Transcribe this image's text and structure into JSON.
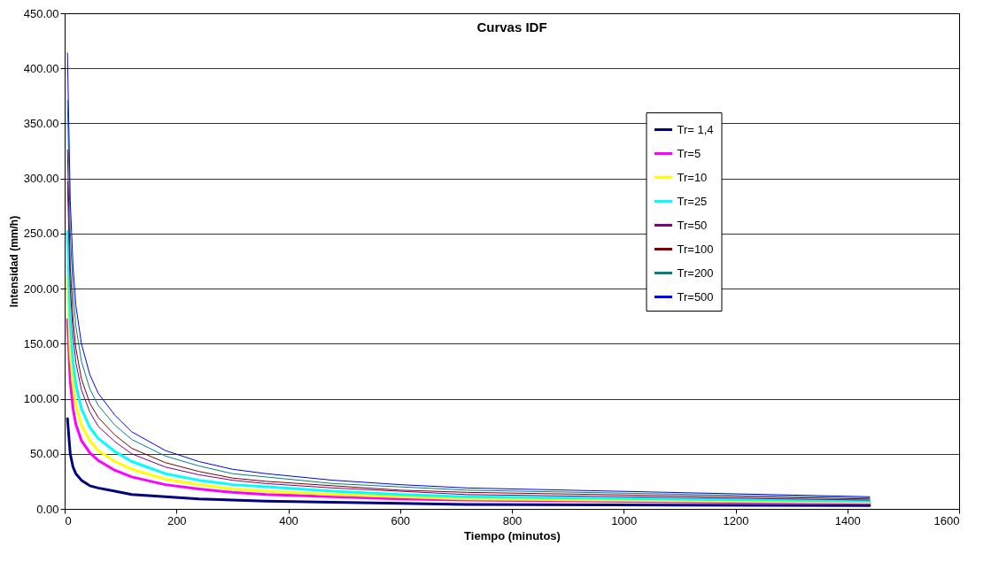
{
  "chart_data": {
    "type": "line",
    "title": "Curvas IDF",
    "xlabel": "Tiempo (minutos)",
    "ylabel": "Intensidad (mm/h)",
    "x": [
      5,
      10,
      15,
      20,
      30,
      45,
      60,
      90,
      120,
      180,
      240,
      300,
      360,
      480,
      600,
      720,
      1440
    ],
    "series": [
      {
        "name": "Tr= 1,4",
        "color": "#000080",
        "values": [
          82,
          50,
          38,
          32,
          26,
          21,
          19,
          16,
          13,
          11,
          9,
          8,
          7,
          6,
          5,
          4,
          3
        ]
      },
      {
        "name": "Tr=5",
        "color": "#ff00ff",
        "values": [
          172,
          116,
          91,
          77,
          62,
          51,
          44,
          35,
          29,
          22,
          18,
          15,
          13,
          11,
          9,
          8,
          5
        ]
      },
      {
        "name": "Tr=10",
        "color": "#ffff00",
        "values": [
          210,
          142,
          112,
          94,
          76,
          62,
          53,
          43,
          36,
          27,
          22,
          18,
          16,
          13,
          11,
          9,
          6
        ]
      },
      {
        "name": "Tr=25",
        "color": "#00ffff",
        "values": [
          252,
          170,
          134,
          113,
          91,
          74,
          64,
          52,
          43,
          32,
          26,
          22,
          20,
          16,
          13,
          11,
          7
        ]
      },
      {
        "name": "Tr=50",
        "color": "#800080",
        "values": [
          297,
          201,
          158,
          133,
          108,
          88,
          75,
          61,
          50,
          38,
          31,
          26,
          23,
          19,
          16,
          13,
          8
        ]
      },
      {
        "name": "Tr=100",
        "color": "#800000",
        "values": [
          326,
          220,
          173,
          146,
          118,
          96,
          83,
          67,
          55,
          42,
          34,
          28,
          25,
          21,
          17,
          15,
          9
        ]
      },
      {
        "name": "Tr=200",
        "color": "#008080",
        "values": [
          371,
          251,
          197,
          166,
          134,
          109,
          94,
          76,
          63,
          48,
          39,
          32,
          29,
          23,
          20,
          17,
          10
        ]
      },
      {
        "name": "Tr=500",
        "color": "#0000ff",
        "values": [
          414,
          280,
          220,
          185,
          150,
          122,
          105,
          85,
          70,
          53,
          43,
          36,
          32,
          26,
          22,
          19,
          11
        ]
      }
    ],
    "xlim": [
      0,
      1600
    ],
    "xticks": [
      0,
      200,
      400,
      600,
      800,
      1000,
      1200,
      1400,
      1600
    ],
    "ylim": [
      0,
      450
    ],
    "yticks": [
      {
        "value": 0,
        "label": "0.00"
      },
      {
        "value": 50,
        "label": "50.00"
      },
      {
        "value": 100,
        "label": "100.00"
      },
      {
        "value": 150,
        "label": "150.00"
      },
      {
        "value": 200,
        "label": "200.00"
      },
      {
        "value": 250,
        "label": "250.00"
      },
      {
        "value": 300,
        "label": "300.00"
      },
      {
        "value": 350,
        "label": "350.00"
      },
      {
        "value": 400,
        "label": "400.00"
      },
      {
        "value": 450,
        "label": "450.00"
      }
    ],
    "grid": "y",
    "legend": "top right",
    "marker": "none",
    "line_style": "solid"
  }
}
